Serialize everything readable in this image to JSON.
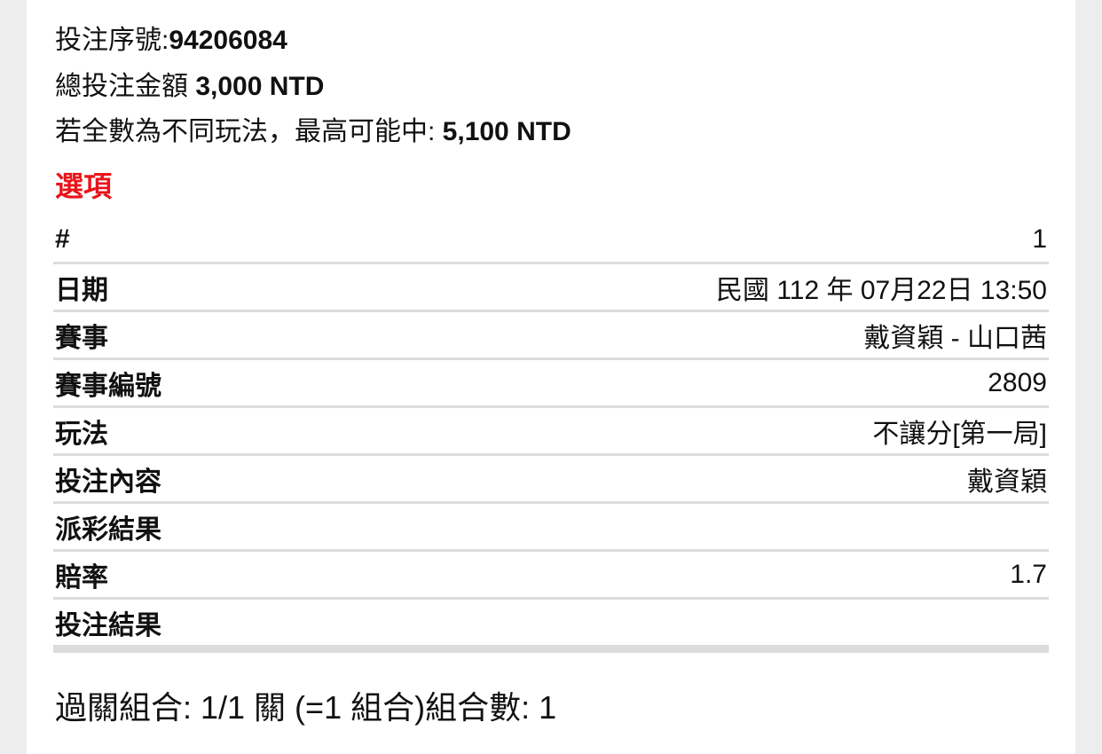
{
  "summary": {
    "serial_label": "投注序號:",
    "serial_value": "94206084",
    "total_label": "總投注金額 ",
    "total_value": "3,000 NTD",
    "max_label": "若全數為不同玩法，最高可能中: ",
    "max_value": "5,100 NTD"
  },
  "section_title": "選項",
  "rows": [
    {
      "label": "#",
      "value": "1"
    },
    {
      "label": "日期",
      "value": "民國 112 年 07月22日 13:50"
    },
    {
      "label": "賽事",
      "value": "戴資穎 - 山口茜"
    },
    {
      "label": "賽事編號",
      "value": "2809"
    },
    {
      "label": "玩法",
      "value": "不讓分[第一局]"
    },
    {
      "label": "投注內容",
      "value": "戴資穎"
    },
    {
      "label": "派彩結果",
      "value": ""
    },
    {
      "label": "賠率",
      "value": "1.7"
    },
    {
      "label": "投注結果",
      "value": ""
    }
  ],
  "combination": "過關組合: 1/1 關 (=1 組合)組合數: 1",
  "colors": {
    "accent": "#e8141b",
    "background": "#ededed",
    "divider": "#dcdcdc"
  }
}
